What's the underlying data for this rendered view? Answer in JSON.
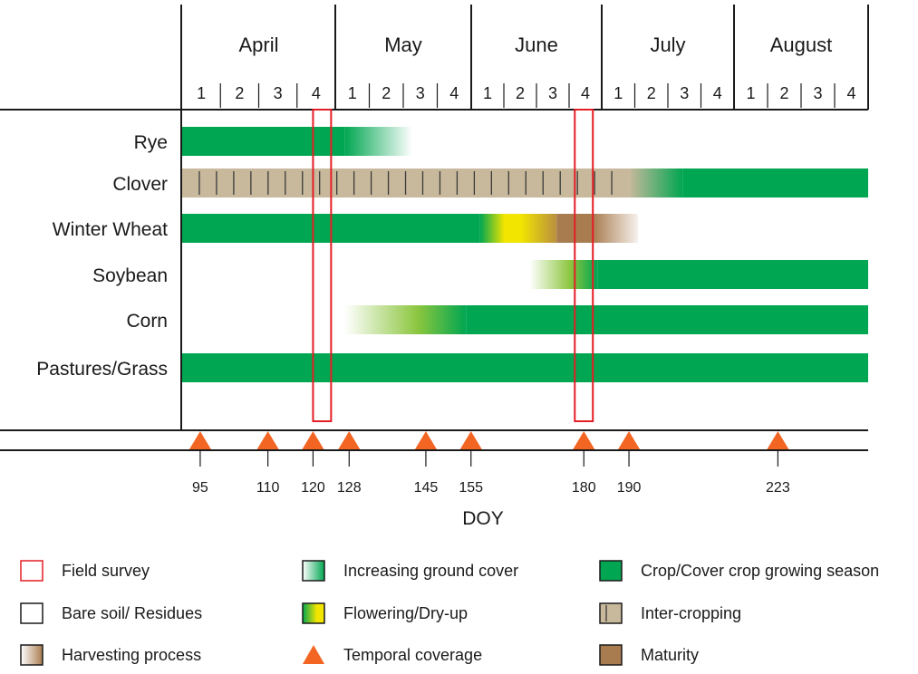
{
  "chart_data": {
    "type": "timeline",
    "months": [
      {
        "name": "April",
        "weeks": [
          "1",
          "2",
          "3",
          "4"
        ]
      },
      {
        "name": "May",
        "weeks": [
          "1",
          "2",
          "3",
          "4"
        ]
      },
      {
        "name": "June",
        "weeks": [
          "1",
          "2",
          "3",
          "4"
        ]
      },
      {
        "name": "July",
        "weeks": [
          "1",
          "2",
          "3",
          "4"
        ]
      },
      {
        "name": "August",
        "weeks": [
          "1",
          "2",
          "3",
          "4"
        ]
      }
    ],
    "doy_domain": [
      91,
      243
    ],
    "crops": [
      {
        "name": "Rye",
        "segments": [
          {
            "phase": "growing",
            "start": 91,
            "end": 127
          },
          {
            "phase": "harvesting",
            "start": 127,
            "end": 142
          }
        ]
      },
      {
        "name": "Clover",
        "segments": [
          {
            "phase": "intercropping",
            "start": 91,
            "end": 190
          },
          {
            "phase": "increasing",
            "start": 190,
            "end": 202
          },
          {
            "phase": "growing",
            "start": 202,
            "end": 243
          }
        ]
      },
      {
        "name": "Winter Wheat",
        "segments": [
          {
            "phase": "growing",
            "start": 91,
            "end": 157
          },
          {
            "phase": "flowering",
            "start": 157,
            "end": 166
          },
          {
            "phase": "drying",
            "start": 166,
            "end": 174
          },
          {
            "phase": "maturity",
            "start": 174,
            "end": 182
          },
          {
            "phase": "harvesting",
            "start": 182,
            "end": 192
          }
        ]
      },
      {
        "name": "Soybean",
        "segments": [
          {
            "phase": "increasing",
            "start": 168,
            "end": 183
          },
          {
            "phase": "growing",
            "start": 183,
            "end": 243
          }
        ]
      },
      {
        "name": "Corn",
        "segments": [
          {
            "phase": "increasing",
            "start": 127,
            "end": 154
          },
          {
            "phase": "growing",
            "start": 154,
            "end": 243
          }
        ]
      },
      {
        "name": "Pastures/Grass",
        "segments": [
          {
            "phase": "growing",
            "start": 91,
            "end": 243
          }
        ]
      }
    ],
    "field_surveys": [
      [
        120,
        124
      ],
      [
        178,
        182
      ]
    ],
    "temporal_coverage": [
      95,
      110,
      120,
      128,
      145,
      155,
      180,
      190,
      223
    ],
    "doy_labels": [
      "95",
      "110",
      "120",
      "128",
      "145",
      "155",
      "180",
      "190",
      "223"
    ],
    "xlabel": "DOY",
    "colors": {
      "growing": "#00a651",
      "intercropping": "#c8b99c",
      "maturity": "#a97c50",
      "flowering": "#f2e500",
      "survey": "#e41e26",
      "triangle": "#f26522"
    },
    "legend": [
      {
        "label": "Field survey",
        "swatch": "survey"
      },
      {
        "label": "Bare soil/ Residues",
        "swatch": "bare"
      },
      {
        "label": "Harvesting process",
        "swatch": "harvesting"
      },
      {
        "label": "Increasing ground cover",
        "swatch": "increasing"
      },
      {
        "label": "Flowering/Dry-up",
        "swatch": "flowering"
      },
      {
        "label": "Temporal coverage",
        "swatch": "triangle"
      },
      {
        "label": "Crop/Cover crop growing season",
        "swatch": "growing"
      },
      {
        "label": "Inter-cropping",
        "swatch": "intercropping"
      },
      {
        "label": "Maturity",
        "swatch": "maturity"
      }
    ]
  }
}
